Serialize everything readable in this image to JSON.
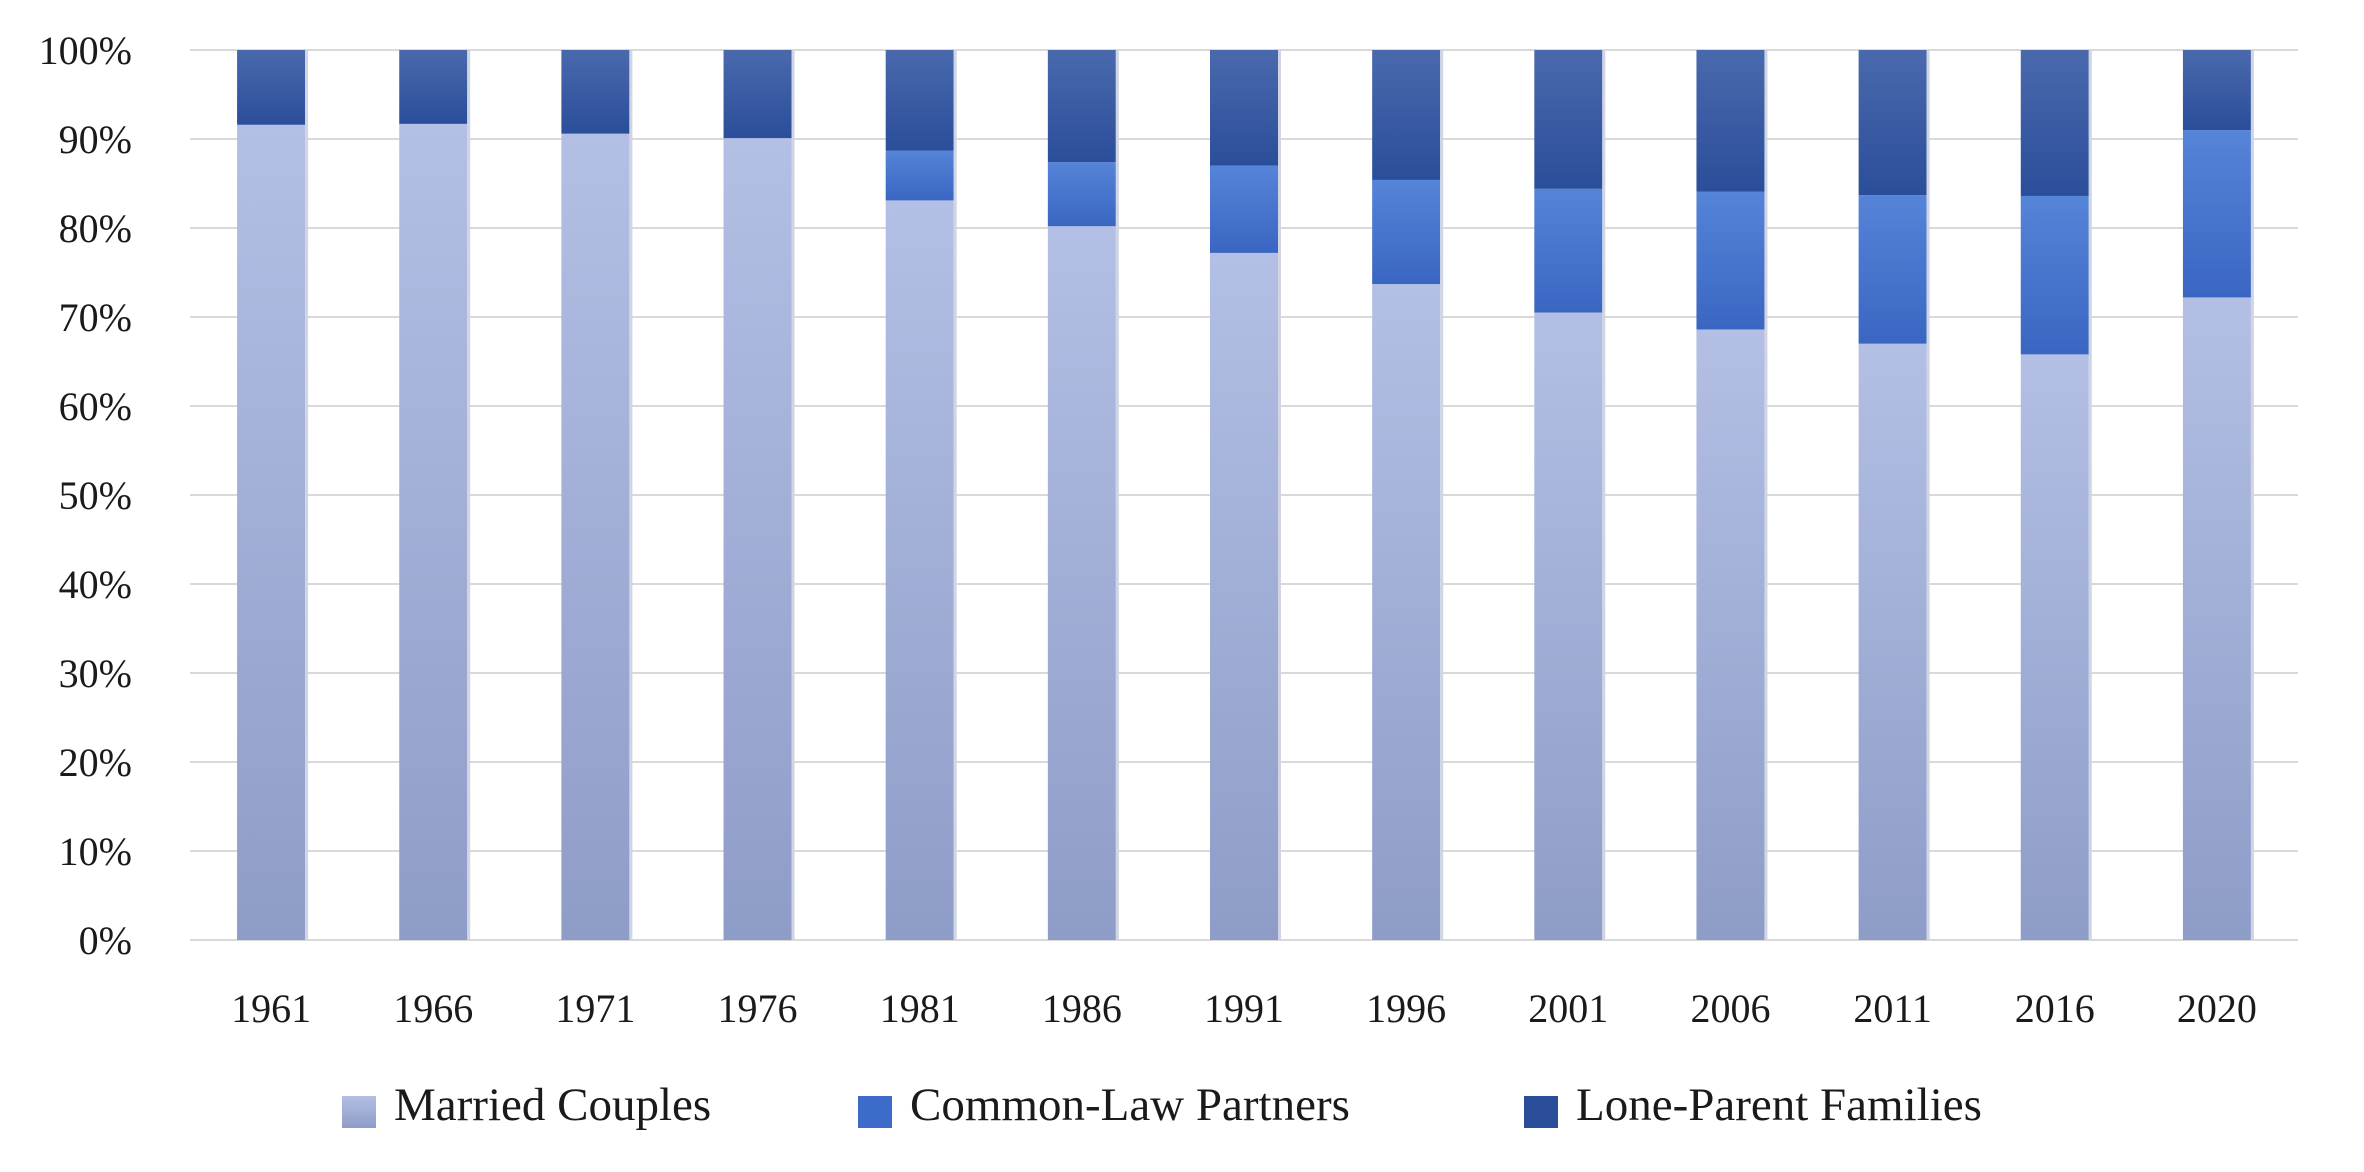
{
  "chart_data": {
    "type": "bar",
    "stacked": true,
    "orientation": "vertical",
    "categories": [
      "1961",
      "1966",
      "1971",
      "1976",
      "1981",
      "1986",
      "1991",
      "1996",
      "2001",
      "2006",
      "2011",
      "2016",
      "2020"
    ],
    "series": [
      {
        "name": "Married Couples",
        "color": "#a4b0dd",
        "values": [
          91.6,
          91.7,
          90.6,
          90.1,
          83.1,
          80.2,
          77.2,
          73.7,
          70.5,
          68.6,
          67.0,
          65.8,
          72.2
        ]
      },
      {
        "name": "Common-Law Partners",
        "color": "#4a76cf",
        "values": [
          0,
          0,
          0,
          0,
          5.6,
          7.2,
          9.8,
          11.7,
          13.9,
          15.5,
          16.7,
          17.8,
          18.8
        ]
      },
      {
        "name": "Lone-Parent Families",
        "color": "#2f54a3",
        "values": [
          8.4,
          8.3,
          9.4,
          9.9,
          11.3,
          12.6,
          13.0,
          14.6,
          15.6,
          15.9,
          16.3,
          16.4,
          9.0
        ]
      }
    ],
    "ylim": [
      0,
      100
    ],
    "y_ticks": [
      "0%",
      "10%",
      "20%",
      "30%",
      "40%",
      "50%",
      "60%",
      "70%",
      "80%",
      "90%",
      "100%"
    ],
    "grid": true,
    "legend_position": "bottom",
    "xlabel": "",
    "ylabel": ""
  }
}
